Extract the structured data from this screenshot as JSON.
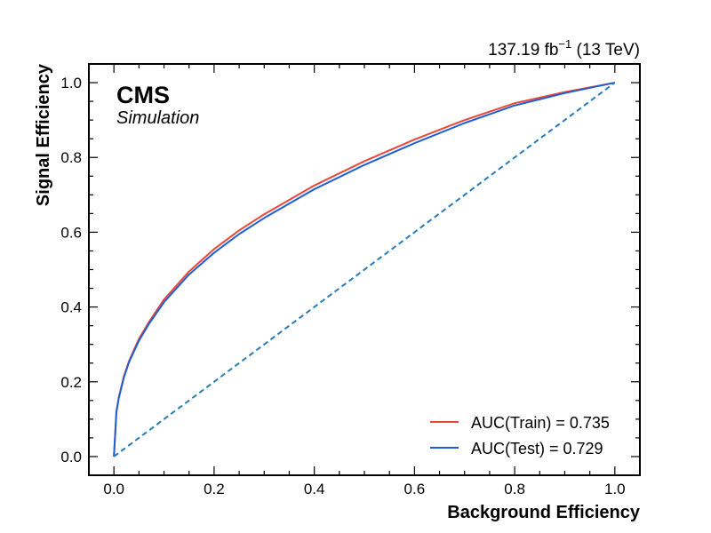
{
  "chart_data": {
    "type": "line",
    "xlabel": "Background Efficiency",
    "ylabel": "Signal Efficiency",
    "xlim": [
      -0.05,
      1.05
    ],
    "ylim": [
      -0.05,
      1.05
    ],
    "xticks": [
      0.0,
      0.2,
      0.4,
      0.6,
      0.8,
      1.0
    ],
    "yticks": [
      0.0,
      0.2,
      0.4,
      0.6,
      0.8,
      1.0
    ],
    "xtick_labels": [
      "0.0",
      "0.2",
      "0.4",
      "0.6",
      "0.8",
      "1.0"
    ],
    "ytick_labels": [
      "0.0",
      "0.2",
      "0.4",
      "0.6",
      "0.8",
      "1.0"
    ],
    "experiment_label": "CMS",
    "experiment_sublabel": "Simulation",
    "lumi_text": "137.19 fb",
    "lumi_exponent": "−1",
    "lumi_energy": " (13 TeV)",
    "legend_position": "lower-right",
    "grid": false,
    "series": [
      {
        "name": "AUC(Train) = 0.735",
        "color": "#e8483a",
        "style": "solid",
        "x": [
          0.0,
          0.005,
          0.01,
          0.02,
          0.03,
          0.05,
          0.07,
          0.1,
          0.15,
          0.2,
          0.25,
          0.3,
          0.4,
          0.5,
          0.6,
          0.7,
          0.8,
          0.9,
          1.0
        ],
        "y": [
          0.0,
          0.12,
          0.16,
          0.215,
          0.255,
          0.315,
          0.36,
          0.42,
          0.495,
          0.555,
          0.605,
          0.648,
          0.725,
          0.79,
          0.848,
          0.9,
          0.945,
          0.975,
          1.0
        ]
      },
      {
        "name": "AUC(Test) = 0.729",
        "color": "#1f5fd6",
        "style": "solid",
        "x": [
          0.0,
          0.005,
          0.01,
          0.02,
          0.03,
          0.05,
          0.07,
          0.1,
          0.15,
          0.2,
          0.25,
          0.3,
          0.4,
          0.5,
          0.6,
          0.7,
          0.8,
          0.9,
          1.0
        ],
        "y": [
          0.0,
          0.12,
          0.158,
          0.212,
          0.252,
          0.31,
          0.355,
          0.413,
          0.487,
          0.545,
          0.595,
          0.638,
          0.715,
          0.78,
          0.838,
          0.892,
          0.939,
          0.972,
          1.0
        ]
      },
      {
        "name": "",
        "color": "#2a7ab4",
        "style": "dashed",
        "x": [
          0.0,
          1.0
        ],
        "y": [
          0.0,
          1.0
        ]
      }
    ]
  }
}
